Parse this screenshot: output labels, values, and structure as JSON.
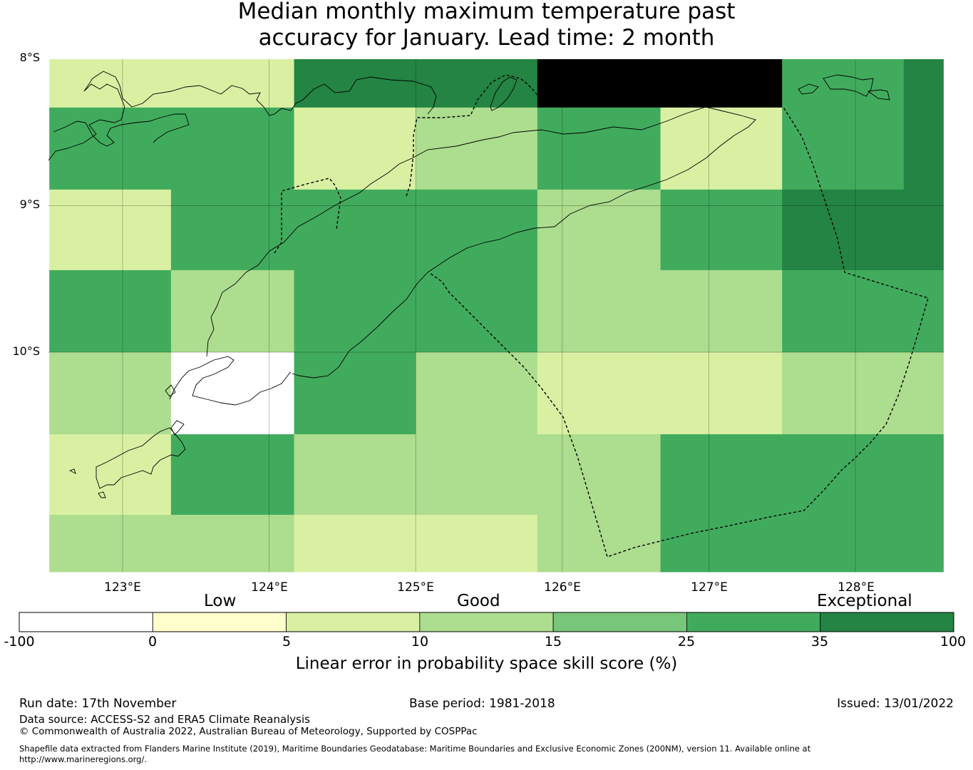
{
  "title": {
    "line1": "Median monthly maximum temperature past",
    "line2": "accuracy for January. Lead time: 2 month"
  },
  "map": {
    "lat_labels": [
      "8°S",
      "9°S",
      "10°S"
    ],
    "lon_labels": [
      "123°E",
      "124°E",
      "125°E",
      "126°E",
      "127°E",
      "128°E"
    ],
    "lon_range": [
      122.5,
      128.6
    ],
    "lat_range": [
      -11.5,
      -8.0
    ],
    "grid_lon_edges": [
      122.5,
      123.33,
      124.17,
      125.0,
      125.83,
      126.67,
      127.5,
      128.33,
      128.6
    ],
    "grid_lat_edges": [
      -8.0,
      -8.33,
      -8.89,
      -9.44,
      -10.0,
      -10.56,
      -11.11,
      -11.5
    ],
    "cell_classes": [
      [
        2,
        2,
        6,
        6,
        7,
        7,
        5,
        6
      ],
      [
        5,
        5,
        2,
        3,
        5,
        2,
        5,
        6
      ],
      [
        2,
        5,
        5,
        5,
        3,
        5,
        6,
        6
      ],
      [
        5,
        3,
        5,
        5,
        3,
        3,
        5,
        5
      ],
      [
        3,
        0,
        5,
        3,
        2,
        2,
        3,
        3
      ],
      [
        2,
        5,
        3,
        3,
        3,
        5,
        5,
        5
      ],
      [
        3,
        3,
        2,
        2,
        3,
        5,
        5,
        5
      ]
    ]
  },
  "legend": {
    "categories": [
      "Low",
      "Good",
      "Exceptional"
    ],
    "ticks": [
      "-100",
      "0",
      "5",
      "10",
      "15",
      "25",
      "35",
      "100"
    ],
    "colors": [
      "#ffffff",
      "#ffffcc",
      "#d9f0a3",
      "#addd8e",
      "#78c679",
      "#41ab5d",
      "#238443"
    ],
    "label": "Linear error in probability space skill score (%)"
  },
  "footer": {
    "run_date": "Run date: 17th November",
    "base_period": "Base period: 1981-2018",
    "issued": "Issued: 13/01/2022",
    "data_source": "Data source: ACCESS-S2 and ERA5 Climate Reanalysis",
    "copyright": "© Commonwealth of Australia 2022, Australian Bureau of Meteorology, Supported by COSPPac",
    "shapefile": "Shapefile data extracted from Flanders Marine Institute (2019), Maritime Boundaries Geodatabase: Maritime Boundaries and Exclusive Economic Zones (200NM), version 11. Available online at http://www.marineregions.org/."
  }
}
